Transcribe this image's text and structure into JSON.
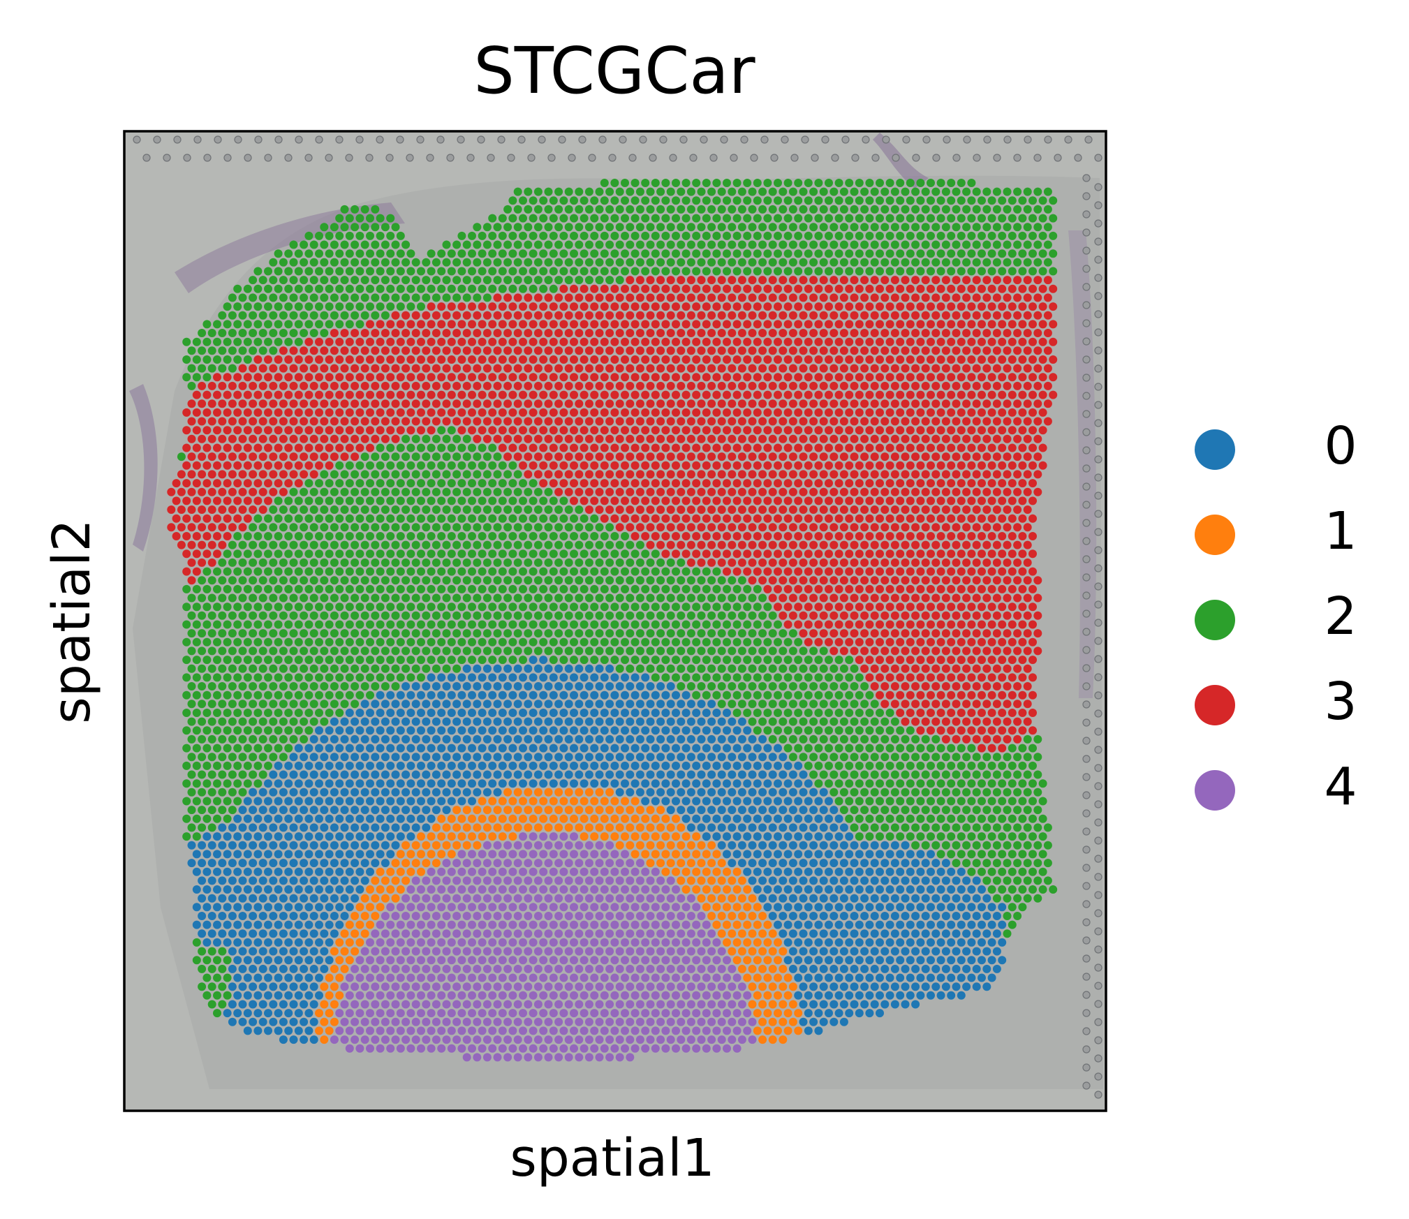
{
  "chart_data": {
    "type": "scatter",
    "title": "STCGCar",
    "xlabel": "spatial1",
    "ylabel": "spatial2",
    "grid": false,
    "background": "tissue histology image (H&E)",
    "legend": {
      "placement": "right",
      "entries": [
        {
          "label": "0",
          "color": "#1f77b4"
        },
        {
          "label": "1",
          "color": "#ff7f0e"
        },
        {
          "label": "2",
          "color": "#2ca02c"
        },
        {
          "label": "3",
          "color": "#d62728"
        },
        {
          "label": "4",
          "color": "#9467bd"
        }
      ]
    }
  }
}
